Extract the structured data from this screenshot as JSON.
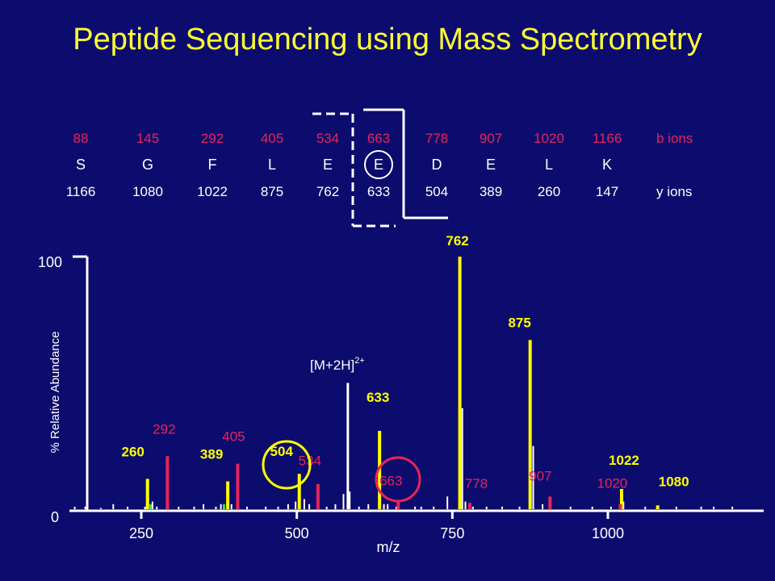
{
  "title": "Peptide Sequencing using Mass Spectrometry",
  "sequence": {
    "b_ions": [
      "88",
      "145",
      "292",
      "405",
      "534",
      "663",
      "778",
      "907",
      "1020",
      "1166"
    ],
    "residues": [
      "S",
      "G",
      "F",
      "L",
      "E",
      "E",
      "D",
      "E",
      "L",
      "K"
    ],
    "y_ions": [
      "1166",
      "1080",
      "1022",
      "875",
      "762",
      "633",
      "504",
      "389",
      "260",
      "147"
    ],
    "b_label": "b ions",
    "y_label": "y ions"
  },
  "colors": {
    "background": "#0c0c6e",
    "title": "#ffff33",
    "b_ion": "#e8245a",
    "y_ion": "#ffff00",
    "other": "#ffffff",
    "green": "#44dd44"
  },
  "chart_data": {
    "type": "bar",
    "xlabel": "m/z",
    "ylabel": "% Relative Abundance",
    "xticks": [
      250,
      500,
      750,
      1000
    ],
    "yticks": [
      0,
      100
    ],
    "xlim": [
      100,
      1300
    ],
    "ylim": [
      0,
      100
    ],
    "precursor_label": "[M+2H]",
    "precursor_charge": "2+",
    "precursor": {
      "mz": 582,
      "value": 50
    },
    "y_ion_peaks": [
      {
        "mz": 260,
        "value": 12,
        "label": "260"
      },
      {
        "mz": 389,
        "value": 11,
        "label": "389"
      },
      {
        "mz": 504,
        "value": 14,
        "label": "504"
      },
      {
        "mz": 633,
        "value": 31,
        "label": "633"
      },
      {
        "mz": 762,
        "value": 100,
        "label": "762"
      },
      {
        "mz": 875,
        "value": 67,
        "label": "875"
      },
      {
        "mz": 1022,
        "value": 8,
        "label": "1022"
      },
      {
        "mz": 1080,
        "value": 1.5,
        "label": "1080"
      }
    ],
    "b_ion_peaks": [
      {
        "mz": 292,
        "value": 21,
        "label": "292"
      },
      {
        "mz": 405,
        "value": 18,
        "label": "405"
      },
      {
        "mz": 534,
        "value": 10,
        "label": "534"
      },
      {
        "mz": 663,
        "value": 3,
        "label": "663"
      },
      {
        "mz": 778,
        "value": 2.5,
        "label": "778"
      },
      {
        "mz": 907,
        "value": 5,
        "label": "907"
      },
      {
        "mz": 1020,
        "value": 2,
        "label": "1020"
      }
    ],
    "minor_peaks": [
      [
        143,
        1
      ],
      [
        160,
        1
      ],
      [
        185,
        0.5
      ],
      [
        205,
        2
      ],
      [
        228,
        1
      ],
      [
        256,
        1
      ],
      [
        268,
        3
      ],
      [
        275,
        1
      ],
      [
        310,
        1
      ],
      [
        335,
        1
      ],
      [
        350,
        2
      ],
      [
        370,
        1
      ],
      [
        378,
        2
      ],
      [
        395,
        2
      ],
      [
        420,
        1
      ],
      [
        450,
        1
      ],
      [
        470,
        1
      ],
      [
        486,
        2
      ],
      [
        498,
        3
      ],
      [
        505,
        6
      ],
      [
        512,
        4
      ],
      [
        520,
        2
      ],
      [
        548,
        1
      ],
      [
        562,
        2
      ],
      [
        575,
        6
      ],
      [
        585,
        7
      ],
      [
        600,
        1
      ],
      [
        615,
        2
      ],
      [
        640,
        2
      ],
      [
        646,
        2
      ],
      [
        660,
        1
      ],
      [
        690,
        1
      ],
      [
        700,
        1
      ],
      [
        720,
        1
      ],
      [
        742,
        5
      ],
      [
        766,
        40
      ],
      [
        771,
        3
      ],
      [
        783,
        1
      ],
      [
        805,
        1
      ],
      [
        830,
        1
      ],
      [
        858,
        1
      ],
      [
        880,
        25
      ],
      [
        895,
        2
      ],
      [
        940,
        1
      ],
      [
        975,
        1
      ],
      [
        1005,
        1
      ],
      [
        1025,
        3
      ],
      [
        1060,
        1
      ],
      [
        1110,
        1
      ],
      [
        1150,
        1
      ],
      [
        1170,
        1
      ],
      [
        1200,
        1
      ]
    ],
    "green_peaks": [
      [
        265,
        2
      ],
      [
        383,
        2
      ]
    ]
  }
}
